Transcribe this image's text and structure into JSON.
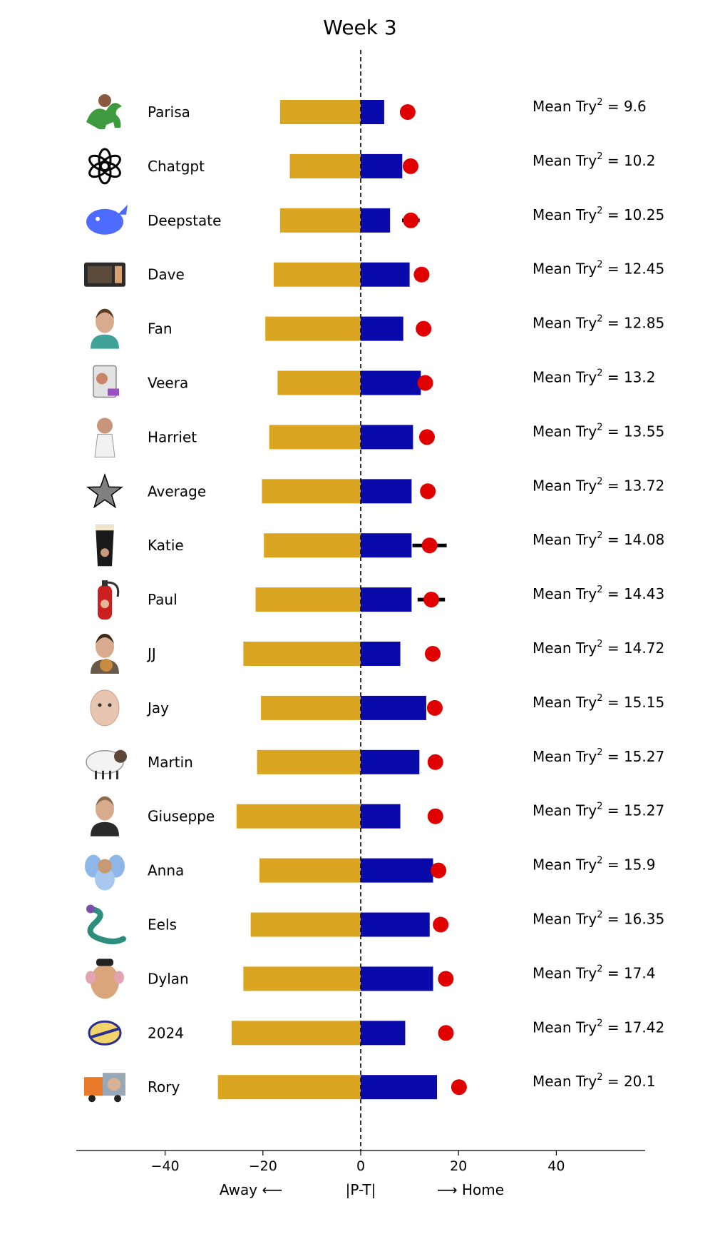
{
  "chart_data": {
    "type": "bar",
    "title": "Week 3",
    "x_ticks": [
      -40,
      -20,
      0,
      20,
      40
    ],
    "xlim": [
      -58,
      58
    ],
    "x_label_left": "Away ⟵",
    "x_label_center": "|P-T|",
    "x_label_right": "⟶ Home",
    "mean_prefix": "Mean Try",
    "mean_exponent": "2",
    "colors": {
      "away": "#DAA520",
      "home": "#0A0AAA",
      "point": "#E00000",
      "error": "#000000",
      "zero_line": "#000000"
    },
    "rows": [
      {
        "name": "Parisa",
        "icon": "dinosaur-icon",
        "away": -16.5,
        "home": 4.8,
        "point": 9.6,
        "err": 0,
        "mean": "9.6"
      },
      {
        "name": "Chatgpt",
        "icon": "openai-logo-icon",
        "away": -14.5,
        "home": 8.5,
        "point": 10.2,
        "err": 0,
        "mean": "10.2"
      },
      {
        "name": "Deepstate",
        "icon": "whale-icon",
        "away": -16.5,
        "home": 6.0,
        "point": 10.25,
        "err": 1.8,
        "mean": "10.25"
      },
      {
        "name": "Dave",
        "icon": "microwave-icon",
        "away": -17.8,
        "home": 10.0,
        "point": 12.45,
        "err": 0,
        "mean": "12.45"
      },
      {
        "name": "Fan",
        "icon": "portrait-icon",
        "away": -19.5,
        "home": 8.7,
        "point": 12.85,
        "err": 0,
        "mean": "12.85"
      },
      {
        "name": "Veera",
        "icon": "computer-icon",
        "away": -17.0,
        "home": 12.3,
        "point": 13.2,
        "err": 0,
        "mean": "13.2"
      },
      {
        "name": "Harriet",
        "icon": "person-icon",
        "away": -18.7,
        "home": 10.7,
        "point": 13.55,
        "err": 0,
        "mean": "13.55"
      },
      {
        "name": "Average",
        "icon": "star-icon",
        "away": -20.2,
        "home": 10.4,
        "point": 13.72,
        "err": 0,
        "mean": "13.72"
      },
      {
        "name": "Katie",
        "icon": "pint-glass-icon",
        "away": -19.8,
        "home": 10.4,
        "point": 14.08,
        "err": 3.5,
        "mean": "14.08"
      },
      {
        "name": "Paul",
        "icon": "fire-extinguisher-icon",
        "away": -21.5,
        "home": 10.4,
        "point": 14.43,
        "err": 2.8,
        "mean": "14.43"
      },
      {
        "name": "JJ",
        "icon": "person-with-dog-icon",
        "away": -24.0,
        "home": 8.1,
        "point": 14.72,
        "err": 0,
        "mean": "14.72"
      },
      {
        "name": "Jay",
        "icon": "child-face-icon",
        "away": -20.4,
        "home": 13.4,
        "point": 15.15,
        "err": 0,
        "mean": "15.15"
      },
      {
        "name": "Martin",
        "icon": "sheep-icon",
        "away": -21.2,
        "home": 12.0,
        "point": 15.27,
        "err": 0,
        "mean": "15.27"
      },
      {
        "name": "Giuseppe",
        "icon": "bearded-man-icon",
        "away": -25.4,
        "home": 8.1,
        "point": 15.27,
        "err": 0,
        "mean": "15.27"
      },
      {
        "name": "Anna",
        "icon": "elephant-icon",
        "away": -20.7,
        "home": 14.8,
        "point": 15.9,
        "err": 0,
        "mean": "15.9"
      },
      {
        "name": "Eels",
        "icon": "eel-icon",
        "away": -22.5,
        "home": 14.1,
        "point": 16.35,
        "err": 0,
        "mean": "16.35"
      },
      {
        "name": "Dylan",
        "icon": "mr-potato-head-icon",
        "away": -24.0,
        "home": 14.8,
        "point": 17.4,
        "err": 0,
        "mean": "17.4"
      },
      {
        "name": "2024",
        "icon": "2024-logo-icon",
        "away": -26.4,
        "home": 9.1,
        "point": 17.42,
        "err": 0,
        "mean": "17.42"
      },
      {
        "name": "Rory",
        "icon": "truck-icon",
        "away": -29.2,
        "home": 15.6,
        "point": 20.1,
        "err": 0,
        "mean": "20.1"
      }
    ]
  }
}
